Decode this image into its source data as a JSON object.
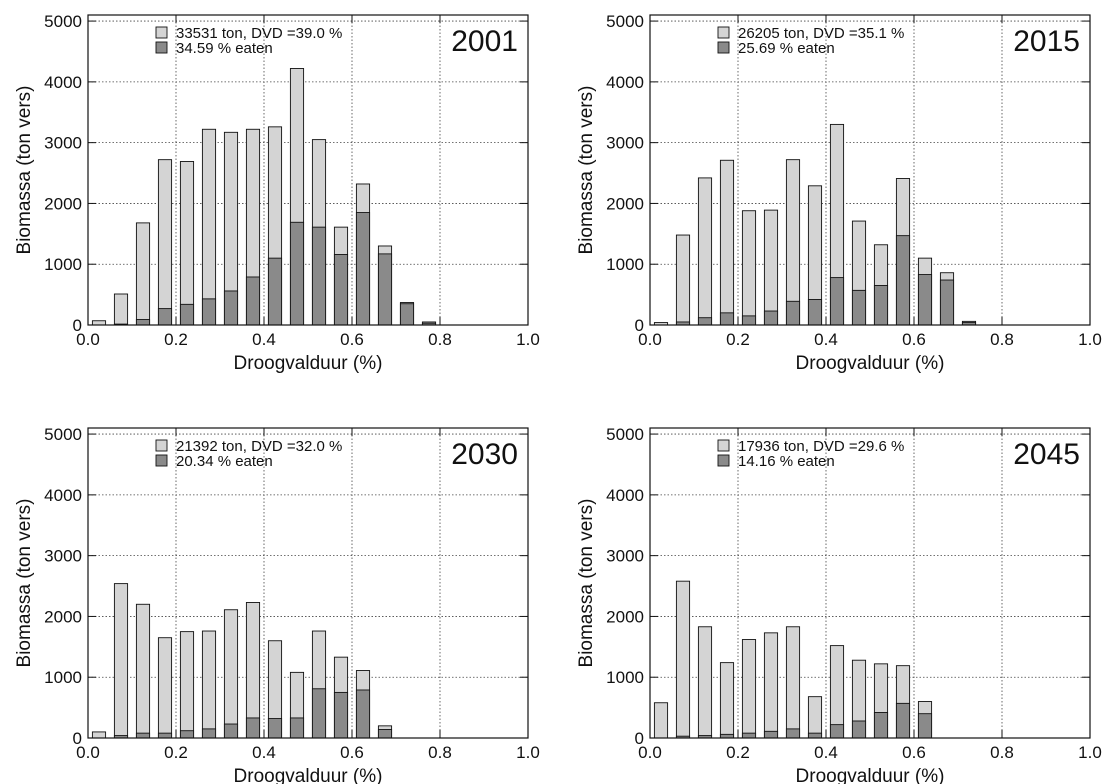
{
  "figure": {
    "bar_colors": {
      "total": "#d4d4d4",
      "eaten": "#8a8a8a",
      "edge": "#111111"
    }
  },
  "chart_data": [
    {
      "type": "bar",
      "year_label": "2001",
      "xlabel": "Droogvalduur (%)",
      "ylabel": "Biomassa (ton vers)",
      "xlim": [
        0.0,
        1.0
      ],
      "ylim": [
        0,
        5100
      ],
      "x_ticks": [
        "0.0",
        "0.2",
        "0.4",
        "0.6",
        "0.8",
        "1.0"
      ],
      "y_ticks": [
        "0",
        "1000",
        "2000",
        "3000",
        "4000",
        "5000"
      ],
      "grid": true,
      "legend": [
        "33531 ton, DVD =39.0 %",
        "34.59 % eaten"
      ],
      "x": [
        0.025,
        0.075,
        0.125,
        0.175,
        0.225,
        0.275,
        0.325,
        0.375,
        0.425,
        0.475,
        0.525,
        0.575,
        0.625,
        0.675,
        0.725,
        0.775
      ],
      "series": [
        {
          "values": [
            70,
            510,
            1680,
            2720,
            2690,
            3220,
            3170,
            3220,
            3260,
            4220,
            3050,
            1610,
            2320,
            1300,
            370,
            50
          ]
        },
        {
          "values": [
            0,
            15,
            90,
            270,
            340,
            430,
            560,
            790,
            1100,
            1690,
            1610,
            1160,
            1850,
            1170,
            350,
            30
          ]
        }
      ]
    },
    {
      "type": "bar",
      "year_label": "2015",
      "xlabel": "Droogvalduur (%)",
      "ylabel": "Biomassa (ton vers)",
      "xlim": [
        0.0,
        1.0
      ],
      "ylim": [
        0,
        5100
      ],
      "x_ticks": [
        "0.0",
        "0.2",
        "0.4",
        "0.6",
        "0.8",
        "1.0"
      ],
      "y_ticks": [
        "0",
        "1000",
        "2000",
        "3000",
        "4000",
        "5000"
      ],
      "grid": true,
      "legend": [
        "26205 ton, DVD =35.1 %",
        "25.69 % eaten"
      ],
      "x": [
        0.025,
        0.075,
        0.125,
        0.175,
        0.225,
        0.275,
        0.325,
        0.375,
        0.425,
        0.475,
        0.525,
        0.575,
        0.625,
        0.675,
        0.725
      ],
      "series": [
        {
          "values": [
            40,
            1480,
            2420,
            2710,
            1880,
            1890,
            2720,
            2290,
            3300,
            1710,
            1320,
            2410,
            1100,
            860,
            60
          ]
        },
        {
          "values": [
            0,
            50,
            120,
            200,
            150,
            230,
            390,
            420,
            780,
            570,
            650,
            1470,
            830,
            740,
            40
          ]
        }
      ]
    },
    {
      "type": "bar",
      "year_label": "2030",
      "xlabel": "Droogvalduur (%)",
      "ylabel": "Biomassa (ton vers)",
      "xlim": [
        0.0,
        1.0
      ],
      "ylim": [
        0,
        5100
      ],
      "x_ticks": [
        "0.0",
        "0.2",
        "0.4",
        "0.6",
        "0.8",
        "1.0"
      ],
      "y_ticks": [
        "0",
        "1000",
        "2000",
        "3000",
        "4000",
        "5000"
      ],
      "grid": true,
      "legend": [
        "21392 ton, DVD =32.0 %",
        "20.34 % eaten"
      ],
      "x": [
        0.025,
        0.075,
        0.125,
        0.175,
        0.225,
        0.275,
        0.325,
        0.375,
        0.425,
        0.475,
        0.525,
        0.575,
        0.625,
        0.675
      ],
      "series": [
        {
          "values": [
            100,
            2540,
            2200,
            1650,
            1750,
            1760,
            2110,
            2230,
            1600,
            1080,
            1760,
            1330,
            1110,
            200
          ]
        },
        {
          "values": [
            0,
            40,
            80,
            80,
            120,
            150,
            230,
            330,
            320,
            330,
            810,
            750,
            790,
            140
          ]
        }
      ]
    },
    {
      "type": "bar",
      "year_label": "2045",
      "xlabel": "Droogvalduur (%)",
      "ylabel": "Biomassa (ton vers)",
      "xlim": [
        0.0,
        1.0
      ],
      "ylim": [
        0,
        5100
      ],
      "x_ticks": [
        "0.0",
        "0.2",
        "0.4",
        "0.6",
        "0.8",
        "1.0"
      ],
      "y_ticks": [
        "0",
        "1000",
        "2000",
        "3000",
        "4000",
        "5000"
      ],
      "grid": true,
      "legend": [
        "17936 ton, DVD =29.6 %",
        "14.16 % eaten"
      ],
      "x": [
        0.025,
        0.075,
        0.125,
        0.175,
        0.225,
        0.275,
        0.325,
        0.375,
        0.425,
        0.475,
        0.525,
        0.575,
        0.625
      ],
      "series": [
        {
          "values": [
            580,
            2580,
            1830,
            1240,
            1620,
            1730,
            1830,
            680,
            1520,
            1280,
            1220,
            1190,
            600
          ]
        },
        {
          "values": [
            0,
            30,
            40,
            60,
            80,
            110,
            150,
            80,
            220,
            280,
            420,
            570,
            400
          ]
        }
      ]
    }
  ]
}
